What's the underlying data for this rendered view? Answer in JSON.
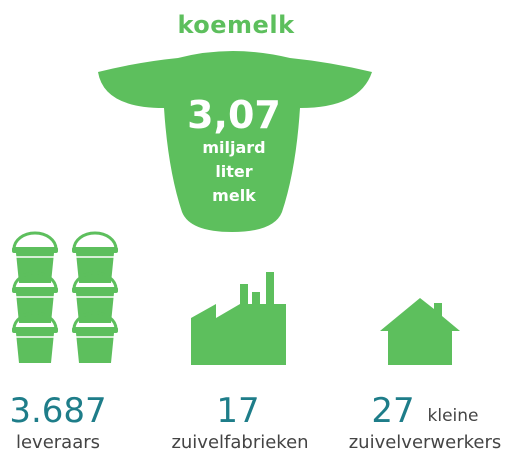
{
  "title": "koemelk",
  "cow": {
    "value": "3,07",
    "lines": [
      "miljard",
      "liter",
      "melk"
    ]
  },
  "stats": [
    {
      "value": "3.687",
      "label": "leveraars"
    },
    {
      "value": 17,
      "label": "zuivelfabrieken"
    },
    {
      "value": 27,
      "qualifier": "kleine",
      "label": "zuivelverwerkers"
    }
  ]
}
